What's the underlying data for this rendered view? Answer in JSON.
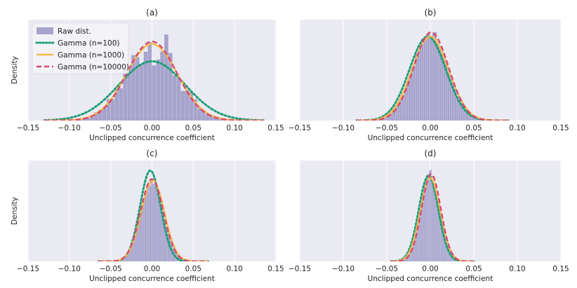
{
  "chart_data": {
    "type": "histogram-with-density-curves",
    "xlim": [
      -0.15,
      0.15
    ],
    "xticks": [
      -0.15,
      -0.1,
      -0.05,
      0.0,
      0.05,
      0.1,
      0.15
    ],
    "xtick_labels": [
      "−0.15",
      "−0.10",
      "−0.05",
      "0.00",
      "0.05",
      "0.10",
      "0.15"
    ],
    "xlabel": "Unclipped concurrence coefficient",
    "ylabel": "Density",
    "colors": {
      "background": "#eaeaf2",
      "grid": "#ffffff",
      "hist": "#a6a3cc",
      "gamma_100": "#1b9e77",
      "gamma_1000": "#f7b84b",
      "gamma_10000": "#d9486e"
    },
    "legend": {
      "position": "top-left",
      "entries": [
        {
          "label": "Raw dist.",
          "style": "patch",
          "color_key": "hist"
        },
        {
          "label": "Gamma (n=100)",
          "style": "dotted",
          "color_key": "gamma_100"
        },
        {
          "label": "Gamma (n=1000)",
          "style": "solid",
          "color_key": "gamma_1000"
        },
        {
          "label": "Gamma (n=10000)",
          "style": "dashed",
          "color_key": "gamma_10000"
        }
      ]
    },
    "panels": [
      {
        "title": "(a)",
        "show_ylabel": true,
        "show_legend": true,
        "hist": {
          "mean": 0.0,
          "sd": 0.03,
          "bin_width": 0.005,
          "range": [
            -0.13,
            0.135
          ],
          "jitter": 0.3
        },
        "curves": [
          {
            "key": "gamma_100",
            "mean": 0.0,
            "sd": 0.04,
            "range": [
              -0.13,
              0.135
            ]
          },
          {
            "key": "gamma_1000",
            "mean": 0.0,
            "sd": 0.031,
            "range": [
              -0.13,
              0.135
            ]
          },
          {
            "key": "gamma_10000",
            "mean": 0.0,
            "sd": 0.03,
            "range": [
              -0.13,
              0.135
            ]
          }
        ]
      },
      {
        "title": "(b)",
        "show_ylabel": false,
        "show_legend": false,
        "hist": {
          "mean": 0.0,
          "sd": 0.02,
          "bin_width": 0.0025,
          "range": [
            -0.085,
            0.09
          ],
          "jitter": 0.06
        },
        "curves": [
          {
            "key": "gamma_100",
            "mean": -0.003,
            "sd": 0.021,
            "range": [
              -0.085,
              0.09
            ]
          },
          {
            "key": "gamma_1000",
            "mean": 0.0,
            "sd": 0.021,
            "range": [
              -0.085,
              0.09
            ]
          },
          {
            "key": "gamma_10000",
            "mean": 0.001,
            "sd": 0.02,
            "range": [
              -0.085,
              0.09
            ]
          }
        ]
      },
      {
        "title": "(c)",
        "show_ylabel": true,
        "show_legend": false,
        "hist": {
          "mean": 0.0,
          "sd": 0.014,
          "bin_width": 0.002,
          "range": [
            -0.065,
            0.068
          ],
          "jitter": 0.06
        },
        "curves": [
          {
            "key": "gamma_100",
            "mean": -0.002,
            "sd": 0.0125,
            "range": [
              -0.065,
              0.068
            ]
          },
          {
            "key": "gamma_1000",
            "mean": 0.001,
            "sd": 0.014,
            "range": [
              -0.065,
              0.068
            ]
          },
          {
            "key": "gamma_10000",
            "mean": 0.0,
            "sd": 0.0138,
            "range": [
              -0.065,
              0.068
            ]
          }
        ]
      },
      {
        "title": "(d)",
        "show_ylabel": false,
        "show_legend": false,
        "hist": {
          "mean": 0.0,
          "sd": 0.011,
          "bin_width": 0.0015,
          "range": [
            -0.045,
            0.05
          ],
          "jitter": 0.08
        },
        "curves": [
          {
            "key": "gamma_100",
            "mean": -0.002,
            "sd": 0.0112,
            "range": [
              -0.045,
              0.05
            ]
          },
          {
            "key": "gamma_1000",
            "mean": 0.0,
            "sd": 0.0115,
            "range": [
              -0.045,
              0.05
            ]
          },
          {
            "key": "gamma_10000",
            "mean": 0.001,
            "sd": 0.011,
            "range": [
              -0.045,
              0.05
            ]
          }
        ]
      }
    ]
  }
}
